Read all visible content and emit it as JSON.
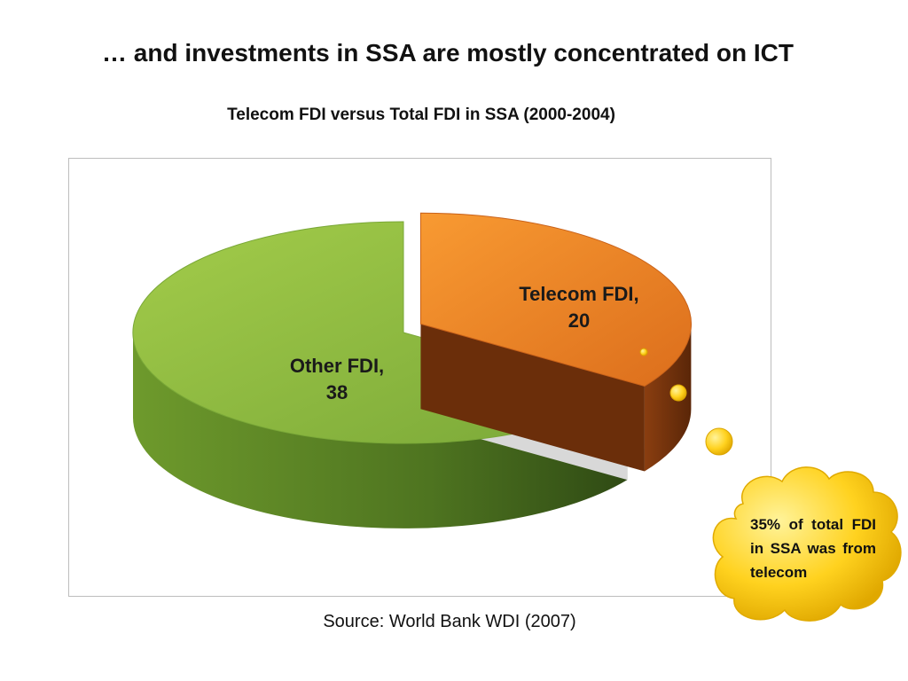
{
  "slide_title": "… and investments in SSA are mostly concentrated on ICT",
  "source": "Source: World Bank WDI (2007)",
  "callout": {
    "text": "35% of total FDI in SSA was from telecom"
  },
  "colors": {
    "telecom": "#f08a28",
    "other": "#8cba3f",
    "callout": "#ffd21f"
  },
  "chart_data": {
    "type": "pie",
    "title": "Telecom FDI versus Total FDI in SSA (2000-2004)",
    "three_d": true,
    "slices": [
      {
        "name": "Telecom FDI",
        "value": 20,
        "label_name": "Telecom FDI,",
        "label_value": "20",
        "exploded": true
      },
      {
        "name": "Other FDI",
        "value": 38,
        "label_name": "Other FDI,",
        "label_value": "38",
        "exploded": false
      }
    ]
  }
}
